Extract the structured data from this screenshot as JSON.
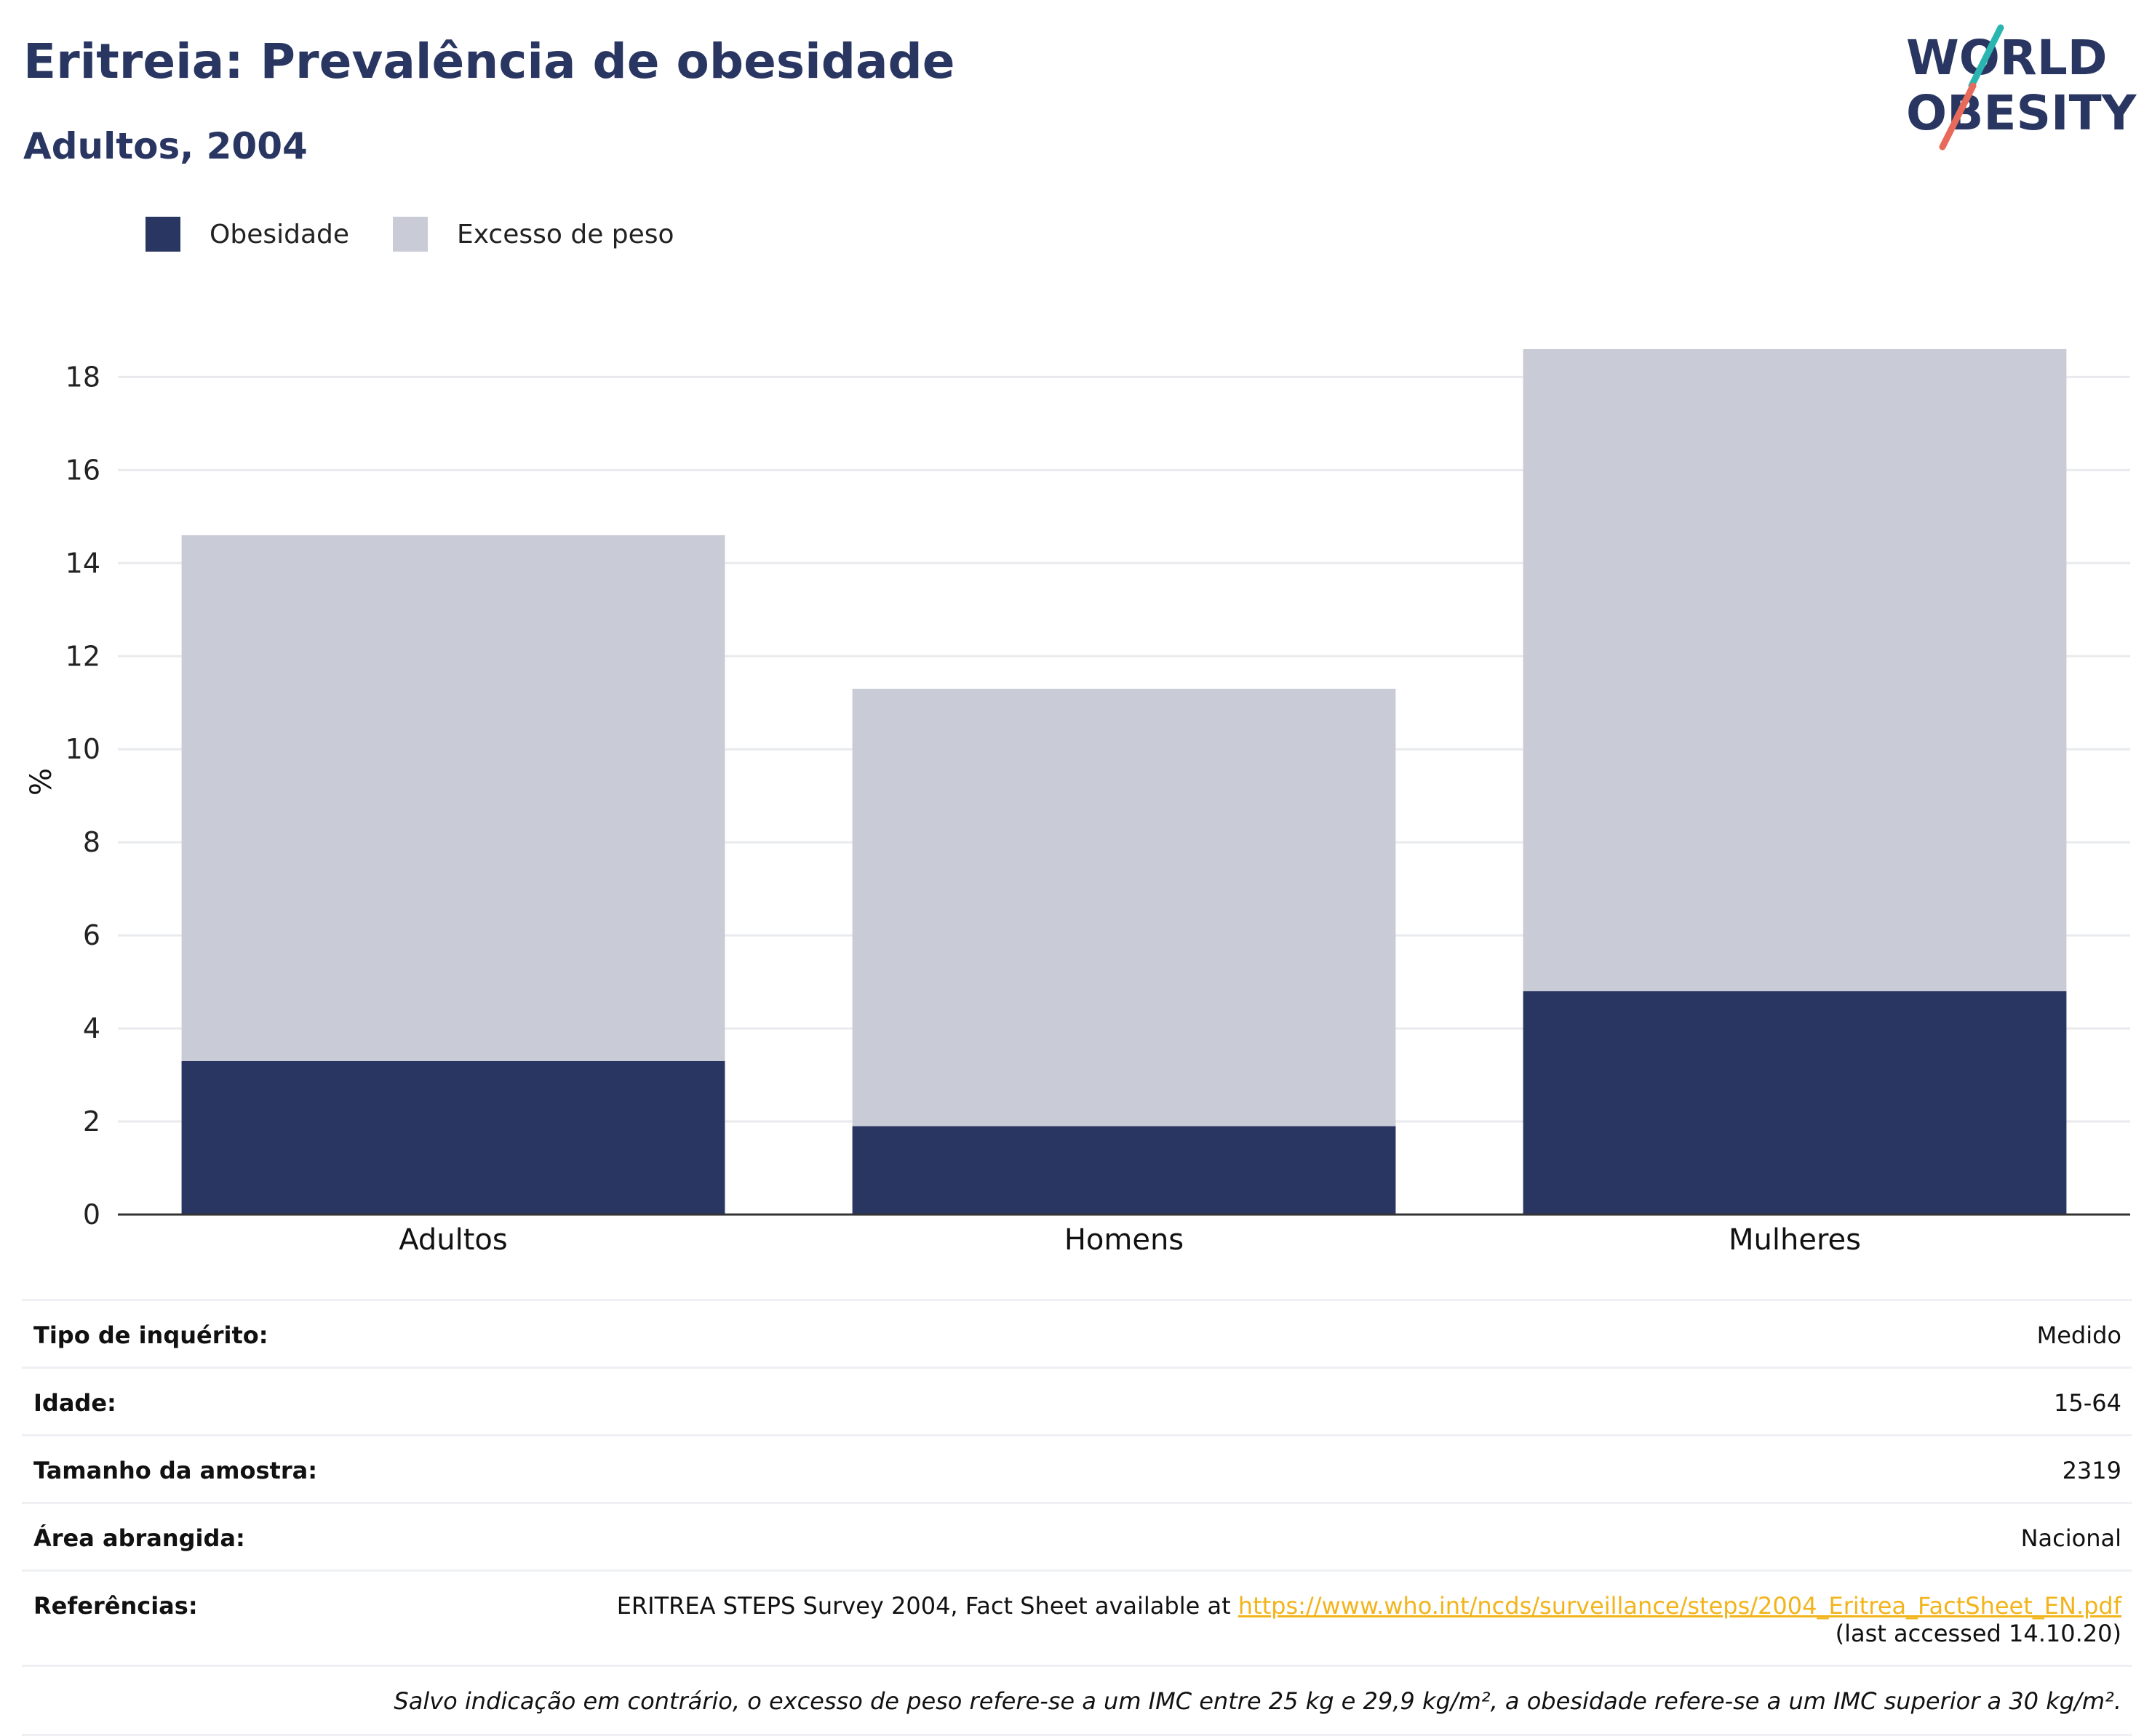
{
  "header": {
    "title": "Eritreia: Prevalência de obesidade",
    "subtitle": "Adultos, 2004",
    "logo_line1": "WORLD",
    "logo_line2": "OBESITY"
  },
  "colors": {
    "obesity": "#2a3662",
    "overweight": "#c9cbd6",
    "title": "#2a3662",
    "link": "#f2b41b",
    "logo_teal": "#2bb5b0",
    "logo_coral": "#e86a5a"
  },
  "chart_data": {
    "type": "bar",
    "stacked": true,
    "categories": [
      "Adultos",
      "Homens",
      "Mulheres"
    ],
    "series": [
      {
        "name": "Obesidade",
        "values": [
          3.3,
          1.9,
          4.8
        ]
      },
      {
        "name": "Excesso de peso",
        "values": [
          11.3,
          9.4,
          13.8
        ]
      }
    ],
    "title": "",
    "xlabel": "",
    "ylabel": "%",
    "ylim": [
      0,
      18.6
    ],
    "yticks": [
      0,
      2,
      4,
      6,
      8,
      10,
      12,
      14,
      16,
      18
    ],
    "grid": true,
    "legend": "top-left"
  },
  "info": {
    "rows": [
      {
        "label": "Tipo de inquérito:",
        "value": "Medido"
      },
      {
        "label": "Idade:",
        "value": "15-64"
      },
      {
        "label": "Tamanho da amostra:",
        "value": "2319"
      },
      {
        "label": "Área abrangida:",
        "value": "Nacional"
      }
    ],
    "references": {
      "label": "Referências:",
      "text": "ERITREA STEPS Survey 2004, Fact Sheet available at ",
      "link": "https://www.who.int/ncds/surveillance/steps/2004_Eritrea_FactSheet_EN.pdf",
      "accessed": "(last accessed 14.10.20)"
    },
    "footnote": "Salvo indicação em contrário, o excesso de peso refere-se a um IMC entre 25 kg e 29,9 kg/m², a obesidade refere-se a um IMC superior a 30 kg/m²."
  }
}
